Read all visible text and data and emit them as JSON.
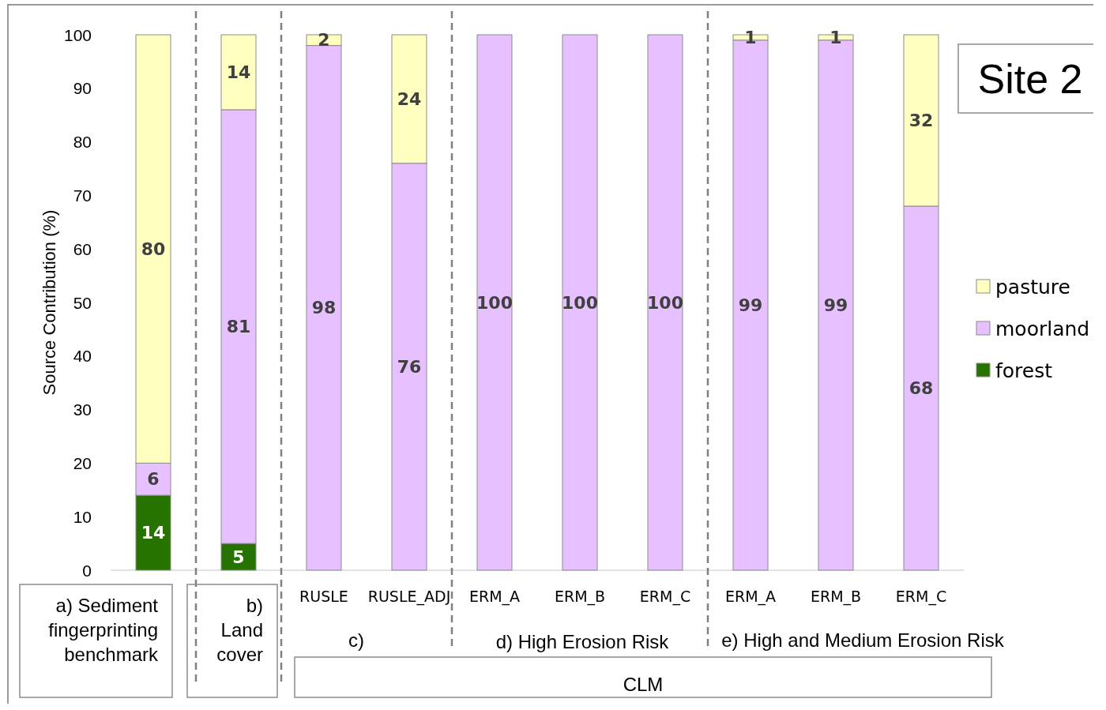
{
  "chart_data": {
    "type": "bar",
    "title": "Site 2",
    "ylabel": "Source Contribution (%)",
    "categories": [
      null,
      null,
      "RUSLE",
      "RUSLE_ADJ",
      "ERM_A",
      "ERM_B",
      "ERM_C",
      "ERM_A",
      "ERM_B",
      "ERM_C"
    ],
    "stacked": true,
    "series": [
      {
        "name": "forest",
        "color": "#267300",
        "values": [
          14,
          5,
          null,
          null,
          null,
          null,
          null,
          null,
          null,
          null
        ]
      },
      {
        "name": "moorland",
        "color": "#e6c0ff",
        "values": [
          6,
          81,
          98,
          76,
          100,
          100,
          100,
          99,
          99,
          68
        ]
      },
      {
        "name": "pasture",
        "color": "#ffffc0",
        "values": [
          80,
          14,
          2,
          24,
          null,
          null,
          null,
          1,
          1,
          32
        ]
      }
    ],
    "ylim": [
      0,
      100
    ],
    "yticks": [
      0,
      10,
      20,
      30,
      40,
      50,
      60,
      70,
      80,
      90,
      100
    ],
    "grid": false,
    "legend": "right",
    "data_labels": true,
    "annotations": [
      "a) Sediment fingerprinting benchmark",
      "b) Land cover",
      "c)",
      "d) High Erosion Risk",
      "e) High and Medium Erosion Risk",
      "CLM"
    ]
  }
}
